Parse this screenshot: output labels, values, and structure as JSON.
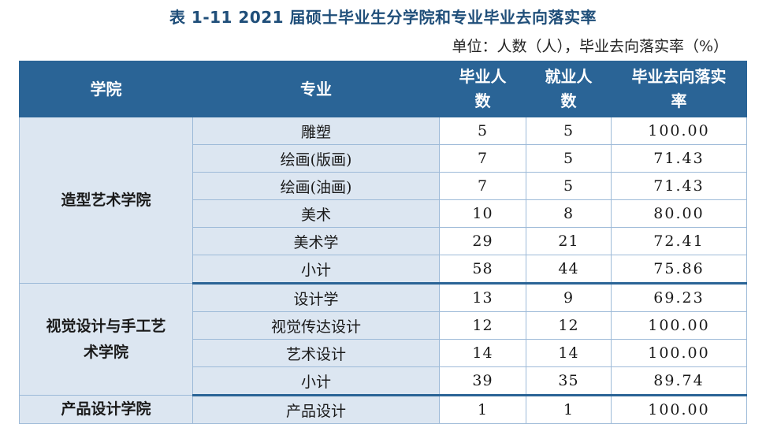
{
  "title": "表 1-11  2021 届硕士毕业生分学院和专业毕业去向落实率",
  "unit_note": "单位：人数（人），毕业去向落实率（%）",
  "headers": {
    "college": "学院",
    "major": "专业",
    "graduates_line1": "毕业人",
    "graduates_line2": "数",
    "employed_line1": "就业人",
    "employed_line2": "数",
    "rate_line1": "毕业去向落实",
    "rate_line2": "率"
  },
  "groups": [
    {
      "college": "造型艺术学院",
      "rows": [
        {
          "major": "雕塑",
          "graduates": "5",
          "employed": "5",
          "rate": "100.00"
        },
        {
          "major": "绘画(版画)",
          "graduates": "7",
          "employed": "5",
          "rate": "71.43"
        },
        {
          "major": "绘画(油画)",
          "graduates": "7",
          "employed": "5",
          "rate": "71.43"
        },
        {
          "major": "美术",
          "graduates": "10",
          "employed": "8",
          "rate": "80.00"
        },
        {
          "major": "美术学",
          "graduates": "29",
          "employed": "21",
          "rate": "72.41"
        },
        {
          "major": "小计",
          "graduates": "58",
          "employed": "44",
          "rate": "75.86"
        }
      ]
    },
    {
      "college_line1": "视觉设计与手工艺",
      "college_line2": "术学院",
      "rows": [
        {
          "major": "设计学",
          "graduates": "13",
          "employed": "9",
          "rate": "69.23"
        },
        {
          "major": "视觉传达设计",
          "graduates": "12",
          "employed": "12",
          "rate": "100.00"
        },
        {
          "major": "艺术设计",
          "graduates": "14",
          "employed": "14",
          "rate": "100.00"
        },
        {
          "major": "小计",
          "graduates": "39",
          "employed": "35",
          "rate": "89.74"
        }
      ]
    },
    {
      "college": "产品设计学院",
      "rows": [
        {
          "major": "产品设计",
          "graduates": "1",
          "employed": "1",
          "rate": "100.00"
        }
      ]
    }
  ]
}
